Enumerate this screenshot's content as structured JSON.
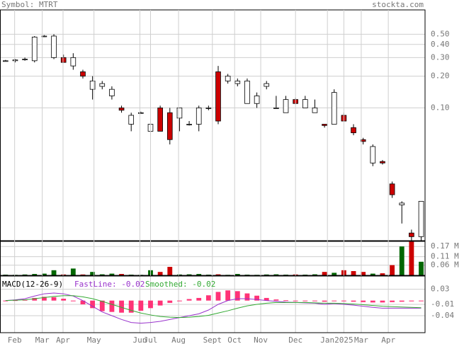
{
  "header": {
    "symbol": "Symbol: MTRT",
    "site": "stockta.com"
  },
  "chart_data": [
    {
      "type": "candlestick",
      "log_scale": true,
      "grid": true,
      "xlim": [
        -0.5,
        43.4
      ],
      "ylim": [
        0.0055,
        0.85
      ],
      "up_color": "#ffffff",
      "down_color": "#cc0000",
      "yticks": [
        {
          "value": 0.5,
          "label": "0.50"
        },
        {
          "value": 0.4,
          "label": "0.40"
        },
        {
          "value": 0.3,
          "label": "0.30"
        },
        {
          "value": 0.2,
          "label": "0.20"
        },
        {
          "value": 0.1,
          "label": "0.10"
        }
      ],
      "open": [
        0.28,
        0.28,
        0.29,
        0.28,
        0.48,
        0.3,
        0.3,
        0.25,
        0.22,
        0.15,
        0.16,
        0.13,
        0.1,
        0.07,
        0.09,
        0.06,
        0.1,
        0.09,
        0.08,
        0.07,
        0.07,
        0.1,
        0.22,
        0.18,
        0.17,
        0.11,
        0.11,
        0.16,
        0.1,
        0.09,
        0.12,
        0.1,
        0.09,
        0.07,
        0.07,
        0.085,
        0.065,
        0.05,
        0.03,
        0.031,
        0.019,
        0.012,
        0.0065,
        0.006
      ],
      "high": [
        0.285,
        0.29,
        0.3,
        0.48,
        0.49,
        0.5,
        0.32,
        0.33,
        0.23,
        0.2,
        0.18,
        0.16,
        0.105,
        0.09,
        0.092,
        0.08,
        0.105,
        0.1,
        0.1,
        0.075,
        0.105,
        0.105,
        0.25,
        0.21,
        0.19,
        0.19,
        0.14,
        0.18,
        0.13,
        0.13,
        0.125,
        0.13,
        0.12,
        0.07,
        0.15,
        0.09,
        0.07,
        0.052,
        0.045,
        0.032,
        0.02,
        0.013,
        0.007,
        0.013
      ],
      "low": [
        0.275,
        0.27,
        0.28,
        0.27,
        0.47,
        0.29,
        0.27,
        0.23,
        0.19,
        0.12,
        0.15,
        0.12,
        0.09,
        0.06,
        0.088,
        0.055,
        0.06,
        0.045,
        0.06,
        0.068,
        0.06,
        0.095,
        0.07,
        0.17,
        0.16,
        0.11,
        0.1,
        0.15,
        0.1,
        0.09,
        0.11,
        0.1,
        0.09,
        0.065,
        0.07,
        0.075,
        0.055,
        0.045,
        0.028,
        0.029,
        0.014,
        0.008,
        0.0055,
        0.0055
      ],
      "close": [
        0.28,
        0.285,
        0.29,
        0.47,
        0.48,
        0.48,
        0.27,
        0.3,
        0.2,
        0.18,
        0.17,
        0.15,
        0.095,
        0.085,
        0.09,
        0.07,
        0.06,
        0.05,
        0.1,
        0.07,
        0.1,
        0.1,
        0.075,
        0.2,
        0.18,
        0.18,
        0.13,
        0.17,
        0.1,
        0.12,
        0.11,
        0.12,
        0.1,
        0.068,
        0.14,
        0.075,
        0.058,
        0.048,
        0.043,
        0.03,
        0.015,
        0.0125,
        0.006,
        0.013
      ]
    },
    {
      "type": "bar",
      "grid": true,
      "xlim": [
        -0.5,
        43.4
      ],
      "ylim": [
        0,
        0.2
      ],
      "up_color": "#006600",
      "down_color": "#cc0000",
      "yticks": [
        {
          "value": 0.17,
          "label": "0.17 M"
        },
        {
          "value": 0.11,
          "label": "0.11 M"
        },
        {
          "value": 0.06,
          "label": "0.06 M"
        }
      ],
      "values": [
        0.004,
        0.003,
        0.005,
        0.008,
        0.01,
        0.03,
        0.005,
        0.04,
        0.005,
        0.02,
        0.006,
        0.01,
        0.008,
        0.004,
        0.003,
        0.03,
        0.02,
        0.05,
        0.005,
        0.006,
        0.008,
        0.004,
        0.006,
        0.003,
        0.008,
        0.004,
        0.003,
        0.005,
        0.006,
        0.004,
        0.005,
        0.004,
        0.006,
        0.02,
        0.015,
        0.03,
        0.025,
        0.02,
        0.01,
        0.012,
        0.06,
        0.17,
        0.2,
        0.08
      ]
    },
    {
      "type": "line",
      "grid": true,
      "title": "MACD(12-26-9)",
      "xlim": [
        -0.5,
        43.4
      ],
      "ylim": [
        -0.085,
        0.065
      ],
      "yticks": [
        0.03,
        -0.01,
        -0.04
      ],
      "xticks": [
        {
          "value": 0.94,
          "label": "Feb"
        },
        {
          "value": 3.8,
          "label": "Mar"
        },
        {
          "value": 5.95,
          "label": "Apr"
        },
        {
          "value": 9.15,
          "label": "May"
        },
        {
          "value": 13.9,
          "label": "Jun"
        },
        {
          "value": 15.0,
          "label": "Jul"
        },
        {
          "value": 17.9,
          "label": "Aug"
        },
        {
          "value": 21.4,
          "label": "Sept"
        },
        {
          "value": 23.7,
          "label": "Oct"
        },
        {
          "value": 26.4,
          "label": "Nov"
        },
        {
          "value": 30.0,
          "label": "Dec"
        },
        {
          "value": 33.3,
          "label": "Jan"
        },
        {
          "value": 35.0,
          "label": "2025"
        },
        {
          "value": 36.8,
          "label": "Mar"
        },
        {
          "value": 39.6,
          "label": "Apr"
        }
      ],
      "histogram_color": "#ff3377",
      "histogram": [
        0,
        0.001,
        0.003,
        0.007,
        0.01,
        0.009,
        0.005,
        -0.001,
        -0.01,
        -0.02,
        -0.028,
        -0.03,
        -0.032,
        -0.032,
        -0.027,
        -0.02,
        -0.013,
        -0.006,
        0,
        0.004,
        0.007,
        0.014,
        0.023,
        0.027,
        0.025,
        0.019,
        0.013,
        0.007,
        0.003,
        0.001,
        0,
        -0.001,
        -0.001,
        -0.003,
        -0.001,
        -0.002,
        -0.003,
        -0.004,
        -0.005,
        -0.005,
        -0.004,
        -0.003,
        -0.002,
        -0.001
      ],
      "series": [
        {
          "name": "FastLine: -0.02",
          "color": "#9933cc",
          "values": [
            0,
            0.002,
            0.005,
            0.012,
            0.018,
            0.02,
            0.018,
            0.012,
            0,
            -0.015,
            -0.03,
            -0.04,
            -0.05,
            -0.058,
            -0.06,
            -0.058,
            -0.055,
            -0.05,
            -0.045,
            -0.04,
            -0.035,
            -0.025,
            -0.01,
            0,
            0.005,
            0.005,
            0.003,
            0,
            -0.002,
            -0.004,
            -0.005,
            -0.006,
            -0.007,
            -0.01,
            -0.008,
            -0.01,
            -0.012,
            -0.015,
            -0.018,
            -0.02,
            -0.02,
            -0.02,
            -0.02,
            -0.02
          ]
        },
        {
          "name": "Smoothed: -0.02",
          "color": "#33aa33",
          "values": [
            0,
            0.001,
            0.002,
            0.005,
            0.008,
            0.011,
            0.013,
            0.013,
            0.01,
            0.005,
            -0.002,
            -0.01,
            -0.018,
            -0.026,
            -0.033,
            -0.038,
            -0.042,
            -0.044,
            -0.045,
            -0.044,
            -0.042,
            -0.039,
            -0.033,
            -0.027,
            -0.02,
            -0.014,
            -0.01,
            -0.007,
            -0.005,
            -0.005,
            -0.005,
            -0.005,
            -0.006,
            -0.007,
            -0.007,
            -0.008,
            -0.009,
            -0.011,
            -0.013,
            -0.015,
            -0.016,
            -0.017,
            -0.018,
            -0.019
          ]
        }
      ]
    }
  ]
}
